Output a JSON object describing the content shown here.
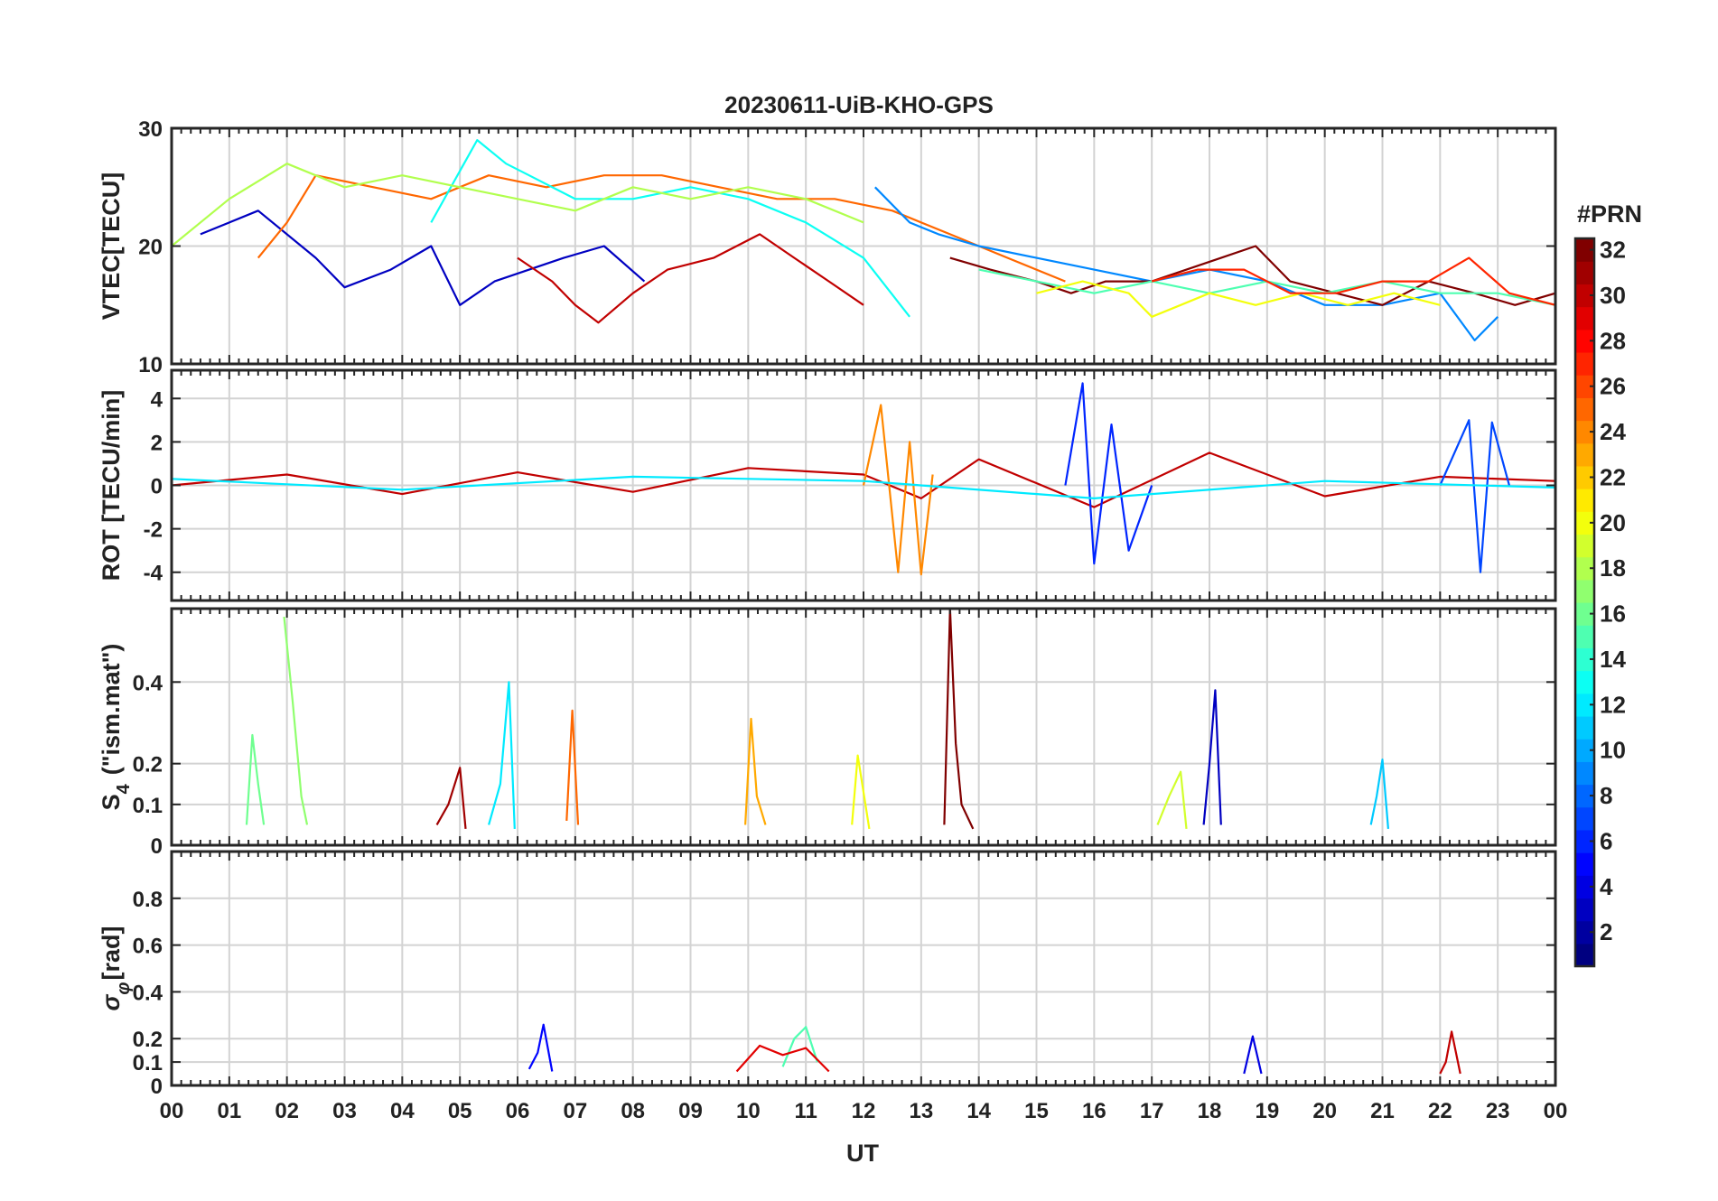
{
  "chart_data": {
    "type": "line",
    "title": "20230611-UiB-KHO-GPS",
    "xlabel": "UT",
    "x_tick_labels": [
      "00",
      "01",
      "02",
      "03",
      "04",
      "05",
      "06",
      "07",
      "08",
      "09",
      "10",
      "11",
      "12",
      "13",
      "14",
      "15",
      "16",
      "17",
      "18",
      "19",
      "20",
      "21",
      "22",
      "23",
      "00"
    ],
    "xlim": [
      0,
      24
    ],
    "grid": true,
    "colorbar": {
      "title": "#PRN",
      "range": [
        1,
        32
      ],
      "tick_labels": [
        "2",
        "4",
        "6",
        "8",
        "10",
        "12",
        "14",
        "16",
        "18",
        "20",
        "22",
        "24",
        "26",
        "28",
        "30",
        "32"
      ],
      "tick_values": [
        2,
        4,
        6,
        8,
        10,
        12,
        14,
        16,
        18,
        20,
        22,
        24,
        26,
        28,
        30,
        32
      ],
      "colormap": "jet"
    },
    "panels": [
      {
        "id": "vtec",
        "ylabel": "VTEC[TECU]",
        "ylim": [
          10,
          30
        ],
        "yticks": [
          10,
          20,
          30
        ],
        "ytick_labels": [
          "10",
          "20",
          "30"
        ],
        "series": [
          {
            "prn": 3,
            "x": [
              0.5,
              1.5,
              2.5,
              3.0,
              3.8,
              4.5,
              5.0,
              5.6,
              6.2,
              6.8,
              7.5,
              8.2
            ],
            "y": [
              21,
              23,
              19,
              16.5,
              18,
              20,
              15,
              17,
              18,
              19,
              20,
              17
            ]
          },
          {
            "prn": 30,
            "x": [
              6.0,
              6.6,
              7.0,
              7.4,
              8.0,
              8.6,
              9.4,
              10.2,
              10.8,
              11.4,
              12.0
            ],
            "y": [
              19,
              17,
              15,
              13.5,
              16,
              18,
              19,
              21,
              19,
              17,
              15
            ]
          },
          {
            "prn": 25,
            "x": [
              1.5,
              2.0,
              2.5,
              3.5,
              4.5,
              5.5,
              6.5,
              7.5,
              8.5,
              9.5,
              10.5,
              11.5,
              12.5,
              13.5,
              14.5,
              15.5
            ],
            "y": [
              19,
              22,
              26,
              25,
              24,
              26,
              25,
              26,
              26,
              25,
              24,
              24,
              23,
              21,
              19,
              17
            ]
          },
          {
            "prn": 13,
            "x": [
              4.5,
              5.3,
              5.8,
              6.2,
              7.0,
              8.0,
              9.0,
              10.0,
              11.0,
              12.0,
              12.8
            ],
            "y": [
              22,
              29,
              27,
              26,
              24,
              24,
              25,
              24,
              22,
              19,
              14
            ]
          },
          {
            "prn": 9,
            "x": [
              12.2,
              12.8,
              13.3,
              14.0,
              15.0,
              16.0,
              17.0,
              18.0,
              19.0,
              20.0,
              21.0,
              22.0,
              22.6,
              23.0
            ],
            "y": [
              25,
              22,
              21,
              20,
              19,
              18,
              17,
              18,
              17,
              15,
              15,
              16,
              12,
              14
            ]
          },
          {
            "prn": 32,
            "x": [
              13.5,
              14.2,
              15.0,
              15.6,
              16.2,
              17.0,
              17.6,
              18.2,
              18.8,
              19.4,
              20.2,
              21.0,
              21.8,
              22.6,
              23.3,
              24.0
            ],
            "y": [
              19,
              18,
              17,
              16,
              17,
              17,
              18,
              19,
              20,
              17,
              16,
              15,
              17,
              16,
              15,
              16
            ]
          },
          {
            "prn": 18,
            "x": [
              0.0,
              1.0,
              2.0,
              3.0,
              4.0,
              5.0,
              6.0,
              7.0,
              8.0,
              9.0,
              10.0,
              11.0,
              12.0
            ],
            "y": [
              20,
              24,
              27,
              25,
              26,
              25,
              24,
              23,
              25,
              24,
              25,
              24,
              22
            ]
          },
          {
            "prn": 15,
            "x": [
              14.0,
              15.0,
              16.0,
              17.0,
              18.0,
              19.0,
              20.0,
              21.0,
              22.0,
              23.0,
              24.0
            ],
            "y": [
              18,
              17,
              16,
              17,
              16,
              17,
              16,
              17,
              16,
              16,
              15
            ]
          },
          {
            "prn": 20,
            "x": [
              15.0,
              15.8,
              16.6,
              17.0,
              17.5,
              18.0,
              18.8,
              19.6,
              20.4,
              21.2,
              22.0
            ],
            "y": [
              16,
              17,
              16,
              14,
              15,
              16,
              15,
              16,
              15,
              16,
              15
            ]
          },
          {
            "prn": 27,
            "x": [
              17.0,
              17.8,
              18.6,
              19.4,
              20.2,
              21.0,
              21.8,
              22.5,
              23.2,
              24.0
            ],
            "y": [
              17,
              18,
              18,
              16,
              16,
              17,
              17,
              19,
              16,
              15
            ]
          }
        ]
      },
      {
        "id": "rot",
        "ylabel": "ROT [TECU/min]",
        "ylim": [
          -5.3,
          5.3
        ],
        "yticks": [
          -4,
          -2,
          0,
          2,
          4
        ],
        "ytick_labels": [
          "-4",
          "-2",
          "0",
          "2",
          "4"
        ],
        "series": [
          {
            "prn": 30,
            "x": [
              0.0,
              2.0,
              4.0,
              6.0,
              8.0,
              10.0,
              12.0,
              13.0,
              14.0,
              16.0,
              18.0,
              20.0,
              22.0,
              24.0
            ],
            "y": [
              0.0,
              0.5,
              -0.4,
              0.6,
              -0.3,
              0.8,
              0.5,
              -0.6,
              1.2,
              -1.0,
              1.5,
              -0.5,
              0.4,
              0.2
            ]
          },
          {
            "prn": 24,
            "x": [
              12.0,
              12.3,
              12.6,
              12.8,
              13.0,
              13.2
            ],
            "y": [
              0.0,
              3.7,
              -4.0,
              2.0,
              -4.1,
              0.5
            ]
          },
          {
            "prn": 6,
            "x": [
              15.5,
              15.8,
              16.0,
              16.3,
              16.6,
              17.0
            ],
            "y": [
              0.0,
              4.7,
              -3.6,
              2.8,
              -3.0,
              0.0
            ]
          },
          {
            "prn": 7,
            "x": [
              22.0,
              22.5,
              22.7,
              22.9,
              23.2
            ],
            "y": [
              0.0,
              3.0,
              -4.0,
              2.9,
              0.0
            ]
          },
          {
            "prn": 12,
            "x": [
              0.0,
              4.0,
              8.0,
              12.0,
              16.0,
              20.0,
              24.0
            ],
            "y": [
              0.3,
              -0.2,
              0.4,
              0.2,
              -0.6,
              0.2,
              -0.1
            ]
          }
        ]
      },
      {
        "id": "s4",
        "ylabel": "S4 (\"ism.mat\")",
        "ylabel_main": "S",
        "ylabel_sub": "4",
        "ylabel_rest": "(\"ism.mat\")",
        "ylim": [
          0,
          0.58
        ],
        "yticks": [
          0,
          0.1,
          0.2,
          0.4
        ],
        "ytick_labels": [
          "0",
          "0.1",
          "0.2",
          "0.4"
        ],
        "series": [
          {
            "prn": 17,
            "x": [
              1.95,
              2.1,
              2.25,
              2.35
            ],
            "y": [
              0.56,
              0.35,
              0.12,
              0.05
            ]
          },
          {
            "prn": 16,
            "x": [
              1.3,
              1.4,
              1.5,
              1.6
            ],
            "y": [
              0.05,
              0.27,
              0.15,
              0.05
            ]
          },
          {
            "prn": 12,
            "x": [
              5.5,
              5.7,
              5.85,
              5.95
            ],
            "y": [
              0.05,
              0.15,
              0.4,
              0.04
            ]
          },
          {
            "prn": 31,
            "x": [
              4.6,
              4.8,
              5.0,
              5.1
            ],
            "y": [
              0.05,
              0.1,
              0.19,
              0.04
            ]
          },
          {
            "prn": 25,
            "x": [
              6.85,
              6.95,
              7.05
            ],
            "y": [
              0.06,
              0.33,
              0.05
            ]
          },
          {
            "prn": 23,
            "x": [
              9.95,
              10.05,
              10.15,
              10.3
            ],
            "y": [
              0.05,
              0.31,
              0.12,
              0.05
            ]
          },
          {
            "prn": 20,
            "x": [
              11.8,
              11.9,
              12.0,
              12.1
            ],
            "y": [
              0.05,
              0.22,
              0.13,
              0.04
            ]
          },
          {
            "prn": 32,
            "x": [
              13.4,
              13.5,
              13.6,
              13.7,
              13.9
            ],
            "y": [
              0.05,
              0.58,
              0.25,
              0.1,
              0.04
            ]
          },
          {
            "prn": 3,
            "x": [
              17.9,
              18.0,
              18.1,
              18.2
            ],
            "y": [
              0.05,
              0.2,
              0.38,
              0.05
            ]
          },
          {
            "prn": 11,
            "x": [
              20.8,
              20.9,
              21.0,
              21.1
            ],
            "y": [
              0.05,
              0.12,
              0.21,
              0.04
            ]
          },
          {
            "prn": 19,
            "x": [
              17.1,
              17.3,
              17.5,
              17.6
            ],
            "y": [
              0.05,
              0.12,
              0.18,
              0.04
            ]
          }
        ]
      },
      {
        "id": "sigma",
        "ylabel": "σφ[rad]",
        "ylabel_main": "σ",
        "ylabel_sub": "φ",
        "ylabel_rest": "[rad]",
        "ylim": [
          0,
          1.0
        ],
        "yticks": [
          0,
          0.1,
          0.2,
          0.4,
          0.6,
          0.8
        ],
        "ytick_labels": [
          "0",
          "0.1",
          "0.2",
          "0.4",
          "0.6",
          "0.8"
        ],
        "series": [
          {
            "prn": 5,
            "x": [
              6.2,
              6.35,
              6.45,
              6.6
            ],
            "y": [
              0.07,
              0.14,
              0.26,
              0.06
            ]
          },
          {
            "prn": 30,
            "x": [
              22.0,
              22.1,
              22.2,
              22.35
            ],
            "y": [
              0.05,
              0.1,
              0.23,
              0.05
            ]
          },
          {
            "prn": 15,
            "x": [
              10.6,
              10.8,
              11.0,
              11.2
            ],
            "y": [
              0.08,
              0.2,
              0.25,
              0.1
            ]
          },
          {
            "prn": 29,
            "x": [
              9.8,
              10.2,
              10.6,
              11.0,
              11.4
            ],
            "y": [
              0.06,
              0.17,
              0.13,
              0.16,
              0.06
            ]
          },
          {
            "prn": 4,
            "x": [
              18.6,
              18.75,
              18.9
            ],
            "y": [
              0.05,
              0.21,
              0.05
            ]
          }
        ]
      }
    ]
  }
}
